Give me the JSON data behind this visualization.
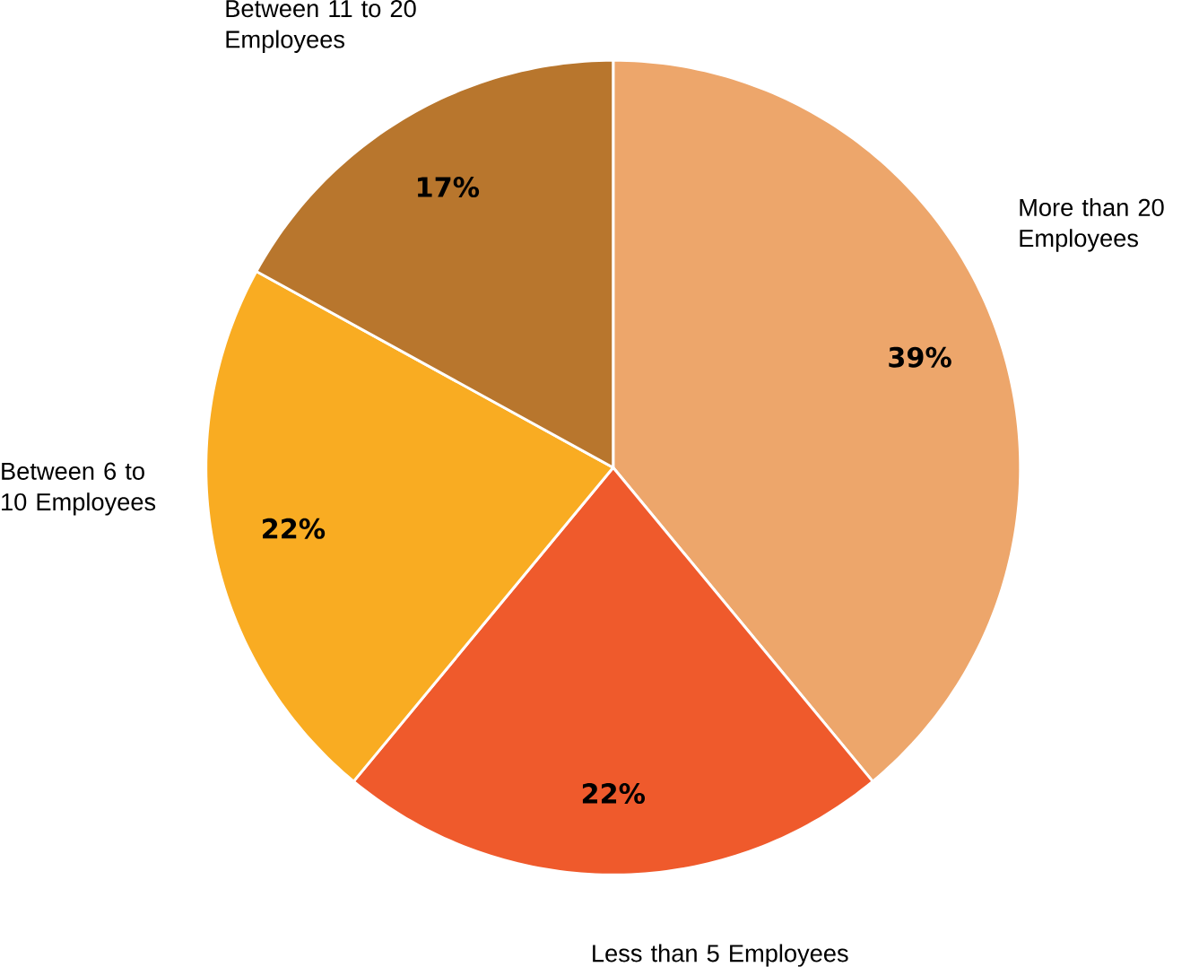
{
  "chart_data": {
    "type": "pie",
    "categories": [
      "More than 20 Employees",
      "Less than 5 Employees",
      "Between 6 to 10 Employees",
      "Between 11 to 20 Employees"
    ],
    "values": [
      39,
      22,
      22,
      17
    ],
    "colors": [
      "#eda66b",
      "#ef5a2c",
      "#f9ac22",
      "#b8762d"
    ],
    "value_labels": [
      "39%",
      "22%",
      "22%",
      "17%"
    ]
  }
}
